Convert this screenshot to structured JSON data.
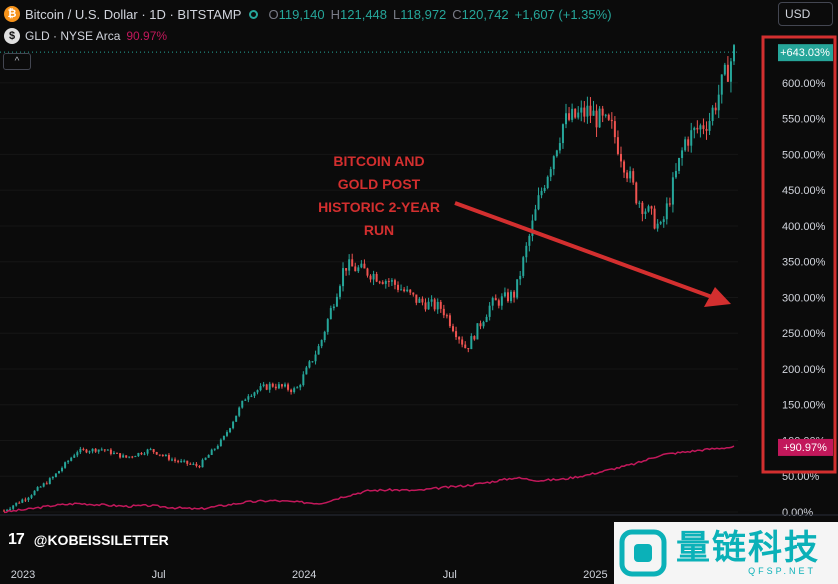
{
  "header": {
    "symbol_icon": "bitcoin-coin-icon",
    "title": "Bitcoin / U.S. Dollar · 1D · BITSTAMP",
    "o_label": "O",
    "o_value": "119,140",
    "h_label": "H",
    "h_value": "121,448",
    "l_label": "L",
    "l_value": "118,972",
    "c_label": "C",
    "c_value": "120,742",
    "change": "+1,607 (+1.35%)",
    "compare_icon_letter": "$",
    "compare_title": "GLD · NYSE Arca",
    "compare_value": "90.97%",
    "currency": "USD"
  },
  "colors": {
    "up": "#26a69a",
    "down": "#ef5350",
    "gld": "#c2185b",
    "annotation": "#d32f2f",
    "background": "#0b0b0b"
  },
  "annotation": {
    "line1": "BITCOIN AND",
    "line2": "GOLD POST",
    "line3": "HISTORIC 2-YEAR",
    "line4": "RUN"
  },
  "footer": {
    "logo_text": "17",
    "handle": "@KOBEISSILETTER"
  },
  "watermark": {
    "text": "量链科技",
    "url": "QFSP.NET"
  },
  "chart_data": {
    "type": "line",
    "y_axis": {
      "scale": "percent",
      "ticks": [
        "600.00%",
        "550.00%",
        "500.00%",
        "450.00%",
        "400.00%",
        "350.00%",
        "300.00%",
        "250.00%",
        "200.00%",
        "150.00%",
        "100.00%",
        "50.00%",
        "0.00%"
      ],
      "range": [
        0,
        660
      ]
    },
    "x_axis": {
      "ticks": [
        "2023",
        "Jul",
        "2024",
        "Jul",
        "2025"
      ]
    },
    "series": [
      {
        "name": "Bitcoin / U.S. Dollar",
        "last_label": "+643.03%",
        "color": "#26a69a",
        "x": [
          "2023-01",
          "2023-02",
          "2023-03",
          "2023-04",
          "2023-05",
          "2023-06",
          "2023-07",
          "2023-08",
          "2023-09",
          "2023-10",
          "2023-11",
          "2023-12",
          "2024-01",
          "2024-02",
          "2024-03",
          "2024-04",
          "2024-05",
          "2024-06",
          "2024-07",
          "2024-08",
          "2024-09",
          "2024-10",
          "2024-11",
          "2024-12",
          "2025-01",
          "2025-02",
          "2025-03",
          "2025-04",
          "2025-05",
          "2025-06",
          "2025-07"
        ],
        "values": [
          2,
          22,
          48,
          85,
          88,
          76,
          87,
          72,
          64,
          102,
          165,
          178,
          170,
          235,
          345,
          335,
          320,
          295,
          285,
          228,
          290,
          305,
          440,
          545,
          560,
          535,
          440,
          395,
          520,
          550,
          643
        ]
      },
      {
        "name": "GLD · NYSE Arca",
        "last_label": "+90.97%",
        "color": "#c2185b",
        "x": [
          "2023-01",
          "2023-02",
          "2023-03",
          "2023-04",
          "2023-05",
          "2023-06",
          "2023-07",
          "2023-08",
          "2023-09",
          "2023-10",
          "2023-11",
          "2023-12",
          "2024-01",
          "2024-02",
          "2024-03",
          "2024-04",
          "2024-05",
          "2024-06",
          "2024-07",
          "2024-08",
          "2024-09",
          "2024-10",
          "2024-11",
          "2024-12",
          "2025-01",
          "2025-02",
          "2025-03",
          "2025-04",
          "2025-05",
          "2025-06",
          "2025-07"
        ],
        "values": [
          0,
          4,
          9,
          12,
          10,
          8,
          9,
          6,
          4,
          9,
          14,
          16,
          14,
          12,
          22,
          30,
          31,
          30,
          34,
          37,
          42,
          48,
          44,
          46,
          52,
          60,
          68,
          80,
          84,
          88,
          91
        ]
      }
    ]
  }
}
